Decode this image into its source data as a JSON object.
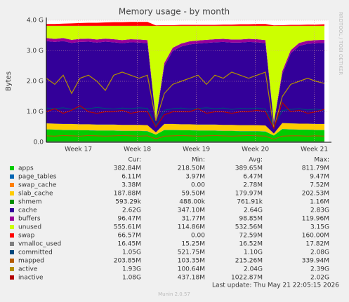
{
  "chart_data": {
    "type": "area",
    "title": "Memory usage - by month",
    "y_label": "Bytes",
    "side_note": "RRDTOOL / TOBI OETIKER",
    "columns": [
      "Cur:",
      "Min:",
      "Avg:",
      "Max:"
    ],
    "last_update": "Last update: Thu May 21 22:05:15 2026",
    "footer": "Munin 2.0.57",
    "ylim": [
      0,
      4
    ],
    "yticks": [
      {
        "value": 0,
        "label": "0.0"
      },
      {
        "value": 1,
        "label": "1.0 G"
      },
      {
        "value": 2,
        "label": "2.0 G"
      },
      {
        "value": 3,
        "label": "3.0 G"
      },
      {
        "value": 4,
        "label": "4.0 G"
      }
    ],
    "xlim": [
      0,
      33.5
    ],
    "xticks": [
      {
        "value": 3.8,
        "label": "Week 17"
      },
      {
        "value": 10.8,
        "label": "Week 18"
      },
      {
        "value": 17.8,
        "label": "Week 19"
      },
      {
        "value": 24.8,
        "label": "Week 20"
      },
      {
        "value": 31.8,
        "label": "Week 21"
      }
    ],
    "grid": true,
    "x": [
      0,
      1,
      2,
      3,
      4,
      5,
      6,
      7,
      8,
      9,
      10,
      11,
      12,
      13,
      14,
      15,
      16,
      17,
      18,
      19,
      20,
      21,
      22,
      23,
      24,
      25,
      26,
      27,
      28,
      29,
      30,
      31,
      32,
      33
    ],
    "series": [
      {
        "name": "apps",
        "color": "#00cc00",
        "draw": "area",
        "cur": "382.84M",
        "min": "218.50M",
        "avg": "389.65M",
        "max": "811.79M",
        "values": [
          0.42,
          0.41,
          0.4,
          0.4,
          0.39,
          0.39,
          0.38,
          0.38,
          0.38,
          0.37,
          0.37,
          0.37,
          0.36,
          0.25,
          0.4,
          0.4,
          0.39,
          0.39,
          0.38,
          0.38,
          0.38,
          0.37,
          0.37,
          0.36,
          0.36,
          0.36,
          0.35,
          0.22,
          0.43,
          0.42,
          0.41,
          0.41,
          0.4,
          0.4
        ]
      },
      {
        "name": "page_tables",
        "color": "#0066b3",
        "draw": "area",
        "cur": "6.11M",
        "min": "3.97M",
        "avg": "6.47M",
        "max": "9.47M",
        "values": [
          0.006,
          0.006,
          0.006,
          0.006,
          0.006,
          0.006,
          0.006,
          0.006,
          0.006,
          0.006,
          0.006,
          0.006,
          0.006,
          0.004,
          0.006,
          0.006,
          0.006,
          0.006,
          0.006,
          0.006,
          0.006,
          0.006,
          0.006,
          0.006,
          0.006,
          0.006,
          0.006,
          0.004,
          0.006,
          0.006,
          0.006,
          0.006,
          0.006,
          0.006
        ]
      },
      {
        "name": "swap_cache",
        "color": "#ff8000",
        "draw": "area",
        "cur": "3.38M",
        "min": "0.00",
        "avg": "2.78M",
        "max": "7.52M",
        "values": [
          0.003,
          0.003,
          0.003,
          0.003,
          0.003,
          0.003,
          0.003,
          0.003,
          0.003,
          0.003,
          0.003,
          0.003,
          0.003,
          0,
          0.003,
          0.003,
          0.003,
          0.003,
          0.003,
          0.003,
          0.003,
          0.003,
          0.003,
          0.003,
          0.003,
          0.003,
          0.003,
          0,
          0.003,
          0.003,
          0.003,
          0.003,
          0.003,
          0.003
        ]
      },
      {
        "name": "slab_cache",
        "color": "#ffcc00",
        "draw": "area",
        "cur": "187.88M",
        "min": "59.50M",
        "avg": "179.97M",
        "max": "202.53M",
        "values": [
          0.19,
          0.19,
          0.19,
          0.19,
          0.19,
          0.19,
          0.19,
          0.19,
          0.19,
          0.19,
          0.19,
          0.19,
          0.19,
          0.07,
          0.19,
          0.19,
          0.19,
          0.19,
          0.19,
          0.19,
          0.19,
          0.19,
          0.19,
          0.19,
          0.19,
          0.19,
          0.19,
          0.06,
          0.19,
          0.19,
          0.19,
          0.19,
          0.19,
          0.19
        ]
      },
      {
        "name": "shmem",
        "color": "#008f00",
        "draw": "area",
        "cur": "593.29k",
        "min": "488.00k",
        "avg": "761.91k",
        "max": "1.16M",
        "values": [
          0.0006,
          0.0006,
          0.0006,
          0.0006,
          0.0006,
          0.0006,
          0.0006,
          0.0006,
          0.0006,
          0.0006,
          0.0006,
          0.0006,
          0.0006,
          0.0005,
          0.0006,
          0.0006,
          0.0006,
          0.0006,
          0.0006,
          0.0006,
          0.0006,
          0.0006,
          0.0006,
          0.0006,
          0.0006,
          0.0006,
          0.0006,
          0.0005,
          0.0006,
          0.0006,
          0.0006,
          0.0006,
          0.0006,
          0.0006
        ]
      },
      {
        "name": "cache",
        "color": "#330099",
        "draw": "area",
        "cur": "2.62G",
        "min": "347.10M",
        "avg": "2.64G",
        "max": "2.83G",
        "values": [
          2.7,
          2.68,
          2.72,
          2.66,
          2.7,
          2.71,
          2.69,
          2.72,
          2.7,
          2.68,
          2.71,
          2.7,
          2.69,
          0.4,
          1.9,
          2.4,
          2.55,
          2.62,
          2.66,
          2.68,
          2.7,
          2.72,
          2.7,
          2.71,
          2.73,
          2.72,
          2.7,
          0.35,
          1.6,
          2.3,
          2.55,
          2.62,
          2.65,
          2.66
        ]
      },
      {
        "name": "buffers",
        "color": "#990099",
        "draw": "area",
        "cur": "96.47M",
        "min": "31.77M",
        "avg": "98.85M",
        "max": "119.96M",
        "values": [
          0.1,
          0.1,
          0.1,
          0.1,
          0.1,
          0.1,
          0.1,
          0.1,
          0.1,
          0.1,
          0.1,
          0.1,
          0.1,
          0.03,
          0.1,
          0.1,
          0.1,
          0.1,
          0.1,
          0.1,
          0.1,
          0.1,
          0.1,
          0.1,
          0.1,
          0.1,
          0.1,
          0.03,
          0.1,
          0.1,
          0.1,
          0.1,
          0.1,
          0.1
        ]
      },
      {
        "name": "unused",
        "color": "#ccff00",
        "draw": "area",
        "cur": "555.61M",
        "min": "114.86M",
        "avg": "532.56M",
        "max": "3.15G",
        "values": [
          0.4,
          0.43,
          0.4,
          0.46,
          0.43,
          0.42,
          0.45,
          0.42,
          0.44,
          0.47,
          0.44,
          0.45,
          0.47,
          3.06,
          1.22,
          0.72,
          0.58,
          0.51,
          0.48,
          0.46,
          0.44,
          0.43,
          0.45,
          0.45,
          0.43,
          0.44,
          0.47,
          3.15,
          1.49,
          0.8,
          0.56,
          0.49,
          0.47,
          0.46
        ]
      },
      {
        "name": "swap",
        "color": "#ff0000",
        "draw": "area",
        "cur": "66.57M",
        "min": "0.00",
        "avg": "72.59M",
        "max": "160.00M",
        "values": [
          0.06,
          0.06,
          0.07,
          0.08,
          0.09,
          0.1,
          0.1,
          0.11,
          0.12,
          0.12,
          0.13,
          0.13,
          0.13,
          0.02,
          0.02,
          0.02,
          0.03,
          0.03,
          0.03,
          0.03,
          0.03,
          0.04,
          0.04,
          0.05,
          0.05,
          0.06,
          0.06,
          0.02,
          0.02,
          0.03,
          0.03,
          0.04,
          0.04,
          0.05
        ]
      },
      {
        "name": "vmalloc_used",
        "color": "#808080",
        "draw": "line",
        "cur": "16.45M",
        "min": "15.25M",
        "avg": "16.52M",
        "max": "17.82M",
        "values": [
          0.016,
          0.016,
          0.016,
          0.016,
          0.016,
          0.016,
          0.016,
          0.016,
          0.016,
          0.016,
          0.016,
          0.016,
          0.016,
          0.015,
          0.016,
          0.016,
          0.016,
          0.016,
          0.016,
          0.016,
          0.016,
          0.016,
          0.016,
          0.016,
          0.016,
          0.016,
          0.016,
          0.015,
          0.016,
          0.016,
          0.016,
          0.016,
          0.016,
          0.016
        ]
      },
      {
        "name": "committed",
        "color": "#00487d",
        "draw": "line",
        "cur": "1.05G",
        "min": "521.75M",
        "avg": "1.10G",
        "max": "2.08G",
        "values": [
          1.12,
          1.1,
          1.13,
          1.08,
          1.12,
          1.1,
          1.14,
          1.11,
          1.09,
          1.12,
          1.1,
          1.13,
          1.11,
          0.55,
          1.05,
          1.1,
          1.12,
          1.09,
          1.11,
          1.13,
          1.1,
          1.12,
          1.08,
          1.11,
          1.1,
          1.12,
          1.09,
          0.52,
          1.04,
          1.08,
          1.1,
          1.06,
          1.09,
          1.05
        ]
      },
      {
        "name": "mapped",
        "color": "#b35a00",
        "draw": "line",
        "cur": "203.85M",
        "min": "103.35M",
        "avg": "215.26M",
        "max": "339.94M",
        "values": [
          0.21,
          0.2,
          0.22,
          0.21,
          0.2,
          0.22,
          0.21,
          0.2,
          0.21,
          0.22,
          0.21,
          0.2,
          0.21,
          0.11,
          0.2,
          0.21,
          0.22,
          0.21,
          0.2,
          0.21,
          0.22,
          0.21,
          0.2,
          0.21,
          0.22,
          0.21,
          0.2,
          0.1,
          0.2,
          0.21,
          0.21,
          0.2,
          0.21,
          0.2
        ]
      },
      {
        "name": "active",
        "color": "#b38f00",
        "draw": "line",
        "cur": "1.93G",
        "min": "100.64M",
        "avg": "2.04G",
        "max": "2.39G",
        "values": [
          2.1,
          1.9,
          2.2,
          1.6,
          2.1,
          2.2,
          2.0,
          1.7,
          2.2,
          2.3,
          2.2,
          2.1,
          2.2,
          0.7,
          1.6,
          1.9,
          2.0,
          2.1,
          2.2,
          1.9,
          2.2,
          2.1,
          2.3,
          2.2,
          2.1,
          2.2,
          2.3,
          0.45,
          1.5,
          1.9,
          2.0,
          2.1,
          2.0,
          1.93
        ]
      },
      {
        "name": "inactive",
        "color": "#b30000",
        "draw": "line",
        "cur": "1.08G",
        "min": "437.18M",
        "avg": "1022.87M",
        "max": "2.02G",
        "values": [
          1.0,
          1.1,
          0.95,
          1.05,
          1.2,
          1.0,
          0.95,
          1.0,
          1.0,
          1.05,
          0.95,
          1.0,
          1.0,
          0.5,
          0.9,
          1.0,
          1.0,
          1.0,
          1.1,
          0.95,
          1.0,
          1.0,
          0.95,
          1.0,
          1.0,
          1.05,
          1.0,
          0.45,
          1.3,
          1.0,
          1.05,
          0.95,
          1.0,
          1.08
        ]
      }
    ]
  }
}
